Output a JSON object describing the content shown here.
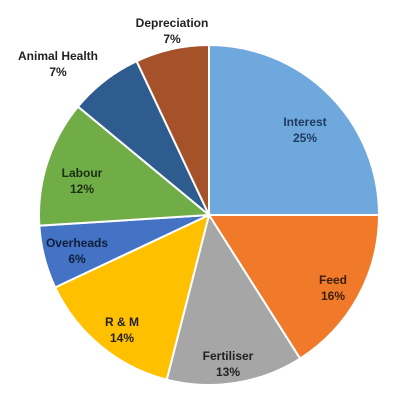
{
  "chart_data": {
    "type": "pie",
    "title": "",
    "start_angle_deg": 0,
    "direction": "clockwise",
    "slices": [
      {
        "label": "Interest",
        "percent_text": "25%",
        "value": 25,
        "color": "#6FA8DC",
        "label_color": "#1F3A5F",
        "label_position": "inside"
      },
      {
        "label": "Feed",
        "percent_text": "16%",
        "value": 16,
        "color": "#F07A2A",
        "label_color": "#3A1E0B",
        "label_position": "inside"
      },
      {
        "label": "Fertiliser",
        "percent_text": "13%",
        "value": 13,
        "color": "#A6A6A6",
        "label_color": "#222222",
        "label_position": "inside"
      },
      {
        "label": "R & M",
        "percent_text": "14%",
        "value": 14,
        "color": "#FFC000",
        "label_color": "#222222",
        "label_position": "inside"
      },
      {
        "label": "Overheads",
        "percent_text": "6%",
        "value": 6,
        "color": "#4472C4",
        "label_color": "#0F1F3A",
        "label_position": "inside"
      },
      {
        "label": "Labour",
        "percent_text": "12%",
        "value": 12,
        "color": "#70AD47",
        "label_color": "#1B2E12",
        "label_position": "inside"
      },
      {
        "label": "Animal Health",
        "percent_text": "7%",
        "value": 7,
        "color": "#2F5C8F",
        "label_color": "#222222",
        "label_position": "outside"
      },
      {
        "label": "Depreciation",
        "percent_text": "7%",
        "value": 7,
        "color": "#A5512A",
        "label_color": "#222222",
        "label_position": "outside"
      }
    ]
  }
}
